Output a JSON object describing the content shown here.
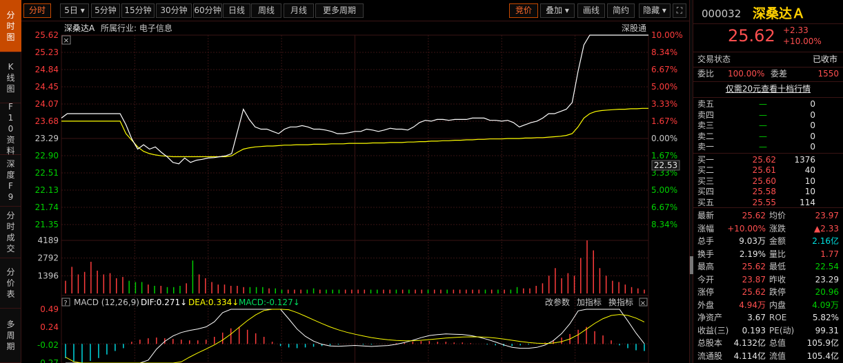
{
  "sidebar": {
    "tabs": [
      {
        "id": "intraday",
        "label": "分时图"
      },
      {
        "id": "kline",
        "label": "K线图"
      },
      {
        "id": "f10",
        "label": "F10资料"
      },
      {
        "id": "depth",
        "label": "深度F9"
      },
      {
        "id": "trades",
        "label": "分时成交"
      },
      {
        "id": "price",
        "label": "分价表"
      },
      {
        "id": "multi",
        "label": "多周期"
      }
    ]
  },
  "toolbar": {
    "left": [
      "分时",
      "5日",
      "5分钟",
      "15分钟",
      "30分钟",
      "60分钟",
      "日线",
      "周线",
      "月线",
      "更多周期"
    ],
    "right": [
      "竞价",
      "叠加",
      "画线",
      "简约",
      "隐藏"
    ]
  },
  "chart": {
    "title": "深桑达A",
    "industry": "所属行业: 电子信息",
    "tag": "深股通",
    "price_ticks": [
      "25.62",
      "25.23",
      "24.84",
      "24.45",
      "24.07",
      "23.68",
      "23.29",
      "22.90",
      "22.51",
      "22.13",
      "21.74",
      "21.35"
    ],
    "pct_ticks": [
      "10.00%",
      "8.34%",
      "6.67%",
      "5.00%",
      "3.33%",
      "1.67%",
      "0.00%",
      "1.67%",
      "3.33%",
      "5.00%",
      "6.67%",
      "8.34%"
    ],
    "cursor_price": "22.53",
    "volume_ticks": [
      "4189",
      "2792",
      "1396"
    ],
    "macd": {
      "name": "MACD",
      "params": "(12,26,9)",
      "dif": "DIF:0.271↓",
      "dea": "DEA:0.334↓",
      "macd": "MACD:-0.127↓",
      "buttons": [
        "改参数",
        "加指标",
        "换指标"
      ],
      "ticks": [
        "0.49",
        "0.24",
        "-0.02",
        "-0.27"
      ]
    },
    "colors": {
      "up": "#ff3c3c",
      "down": "#00d000",
      "price_line": "#ffffff",
      "avg_line": "#ffff00",
      "grid": "#3a1414",
      "cyan": "#00d8e0"
    }
  },
  "chart_data": {
    "type": "line",
    "series": [
      {
        "values": [
          23.75,
          23.85,
          23.85,
          23.85,
          23.85,
          23.85,
          23.85,
          23.85,
          23.85,
          23.85,
          23.85,
          23.6,
          23.28,
          23.05,
          23.15,
          23.05,
          23.1,
          22.98,
          22.88,
          22.75,
          22.72,
          22.85,
          22.75,
          22.8,
          22.82,
          22.85,
          22.86,
          22.88,
          22.9,
          22.95,
          23.45,
          23.95,
          23.72,
          23.55,
          23.5,
          23.5,
          23.45,
          23.4,
          23.5,
          23.55,
          23.55,
          23.58,
          23.55,
          23.5,
          23.5,
          23.48,
          23.45,
          23.4,
          23.4,
          23.42,
          23.45,
          23.45,
          23.5,
          23.48,
          23.45,
          23.48,
          23.52,
          23.5,
          23.5,
          23.48,
          23.55,
          23.65,
          23.7,
          23.68,
          23.72,
          23.72,
          23.7,
          23.72,
          23.72,
          23.72,
          23.75,
          23.75,
          23.75,
          23.7,
          23.7,
          23.68,
          23.7,
          23.65,
          23.55,
          23.6,
          23.65,
          23.68,
          23.75,
          23.85,
          23.85,
          23.9,
          23.95,
          24.1,
          24.8,
          25.4,
          25.62,
          25.62,
          25.62,
          25.62,
          25.62,
          25.62,
          25.62,
          25.62,
          25.62,
          25.62,
          25.62
        ]
      },
      {
        "values": [
          23.68,
          23.68,
          23.68,
          23.68,
          23.68,
          23.68,
          23.68,
          23.68,
          23.68,
          23.68,
          23.68,
          23.4,
          23.25,
          23.1,
          23.0,
          22.95,
          22.92,
          22.9,
          22.89,
          22.88,
          22.88,
          22.88,
          22.88,
          22.88,
          22.88,
          22.88,
          22.88,
          22.88,
          22.88,
          22.9,
          22.98,
          23.05,
          23.08,
          23.1,
          23.11,
          23.12,
          23.12,
          23.13,
          23.14,
          23.14,
          23.15,
          23.15,
          23.15,
          23.16,
          23.16,
          23.16,
          23.17,
          23.17,
          23.17,
          23.18,
          23.18,
          23.18,
          23.18,
          23.19,
          23.19,
          23.19,
          23.2,
          23.2,
          23.2,
          23.21,
          23.21,
          23.22,
          23.22,
          23.23,
          23.23,
          23.24,
          23.24,
          23.25,
          23.25,
          23.26,
          23.26,
          23.27,
          23.27,
          23.28,
          23.28,
          23.28,
          23.29,
          23.29,
          23.29,
          23.3,
          23.3,
          23.31,
          23.31,
          23.32,
          23.33,
          23.34,
          23.36,
          23.4,
          23.55,
          23.75,
          23.85,
          23.9,
          23.92,
          23.93,
          23.94,
          23.95,
          23.95,
          23.96,
          23.96,
          23.97,
          23.97
        ]
      }
    ],
    "ylim": [
      21.35,
      25.62
    ],
    "volume": [
      1000,
      2100,
      1500,
      1700,
      2500,
      1800,
      1500,
      1600,
      1200,
      1300,
      1000,
      900,
      900,
      700,
      600,
      600,
      500,
      500,
      600,
      800,
      2600,
      1500,
      1200,
      900,
      700,
      700,
      600,
      600,
      500,
      500,
      500,
      500,
      400,
      400,
      300,
      300,
      300,
      300,
      300,
      400,
      300,
      300,
      300,
      300,
      300,
      300,
      300,
      300,
      300,
      300,
      300,
      300,
      300,
      300,
      300,
      300,
      300,
      300,
      300,
      300,
      300,
      300,
      300,
      300,
      300,
      300,
      300,
      300,
      300,
      300,
      300,
      500,
      400,
      400,
      600,
      800,
      1400,
      2000,
      1200,
      1600,
      1400,
      2800,
      4189,
      3400,
      2000,
      1400,
      1000,
      900,
      700,
      500,
      400,
      300
    ],
    "volume_ylim": [
      0,
      4189
    ],
    "macd_hist": [
      -0.2,
      -0.25,
      -0.27,
      -0.24,
      -0.2,
      -0.15,
      -0.1,
      -0.06,
      0.03,
      0.06,
      0.08,
      0.09,
      0.08,
      0.07,
      0.06,
      0.05,
      0.05,
      0.06,
      0.1,
      0.16,
      0.22,
      0.24,
      0.2,
      0.15,
      0.1,
      0.03,
      -0.03,
      -0.05,
      -0.06,
      -0.05,
      -0.04,
      -0.03,
      -0.02,
      -0.01,
      0.0,
      0.0,
      -0.01,
      -0.01,
      0.0,
      0.0,
      0.01,
      0.02,
      0.03,
      0.04,
      0.04,
      0.03,
      0.03,
      0.02,
      0.02,
      0.01,
      0.0,
      -0.01,
      -0.02,
      -0.03,
      -0.03,
      -0.02,
      -0.01,
      0.0,
      0.02,
      0.05,
      0.09,
      0.14,
      0.2,
      0.24,
      0.18,
      0.12,
      0.05,
      -0.02,
      -0.06,
      -0.09,
      -0.1
    ],
    "macd_ylim": [
      -0.27,
      0.49
    ]
  },
  "quote": {
    "code": "000032",
    "name": "深桑达Ａ",
    "price": "25.62",
    "change": "+2.33",
    "change_pct": "+10.00%",
    "status_label": "交易状态",
    "status": "已收市",
    "webi_label": "委比",
    "webi": "100.00%",
    "weicha_label": "委差",
    "weicha": "1550",
    "link": "仅需20元查看十档行情",
    "sell": [
      {
        "label": "卖五",
        "price": "—",
        "vol": "0"
      },
      {
        "label": "卖四",
        "price": "—",
        "vol": "0"
      },
      {
        "label": "卖三",
        "price": "—",
        "vol": "0"
      },
      {
        "label": "卖二",
        "price": "—",
        "vol": "0"
      },
      {
        "label": "卖一",
        "price": "—",
        "vol": "0"
      }
    ],
    "buy": [
      {
        "label": "买一",
        "price": "25.62",
        "vol": "1376"
      },
      {
        "label": "买二",
        "price": "25.61",
        "vol": "40"
      },
      {
        "label": "买三",
        "price": "25.60",
        "vol": "10"
      },
      {
        "label": "买四",
        "price": "25.58",
        "vol": "10"
      },
      {
        "label": "买五",
        "price": "25.55",
        "vol": "114"
      }
    ],
    "stats": [
      [
        "最新",
        "25.62",
        "red",
        "均价",
        "23.97",
        "red"
      ],
      [
        "涨幅",
        "+10.00%",
        "red",
        "涨跌",
        "▲2.33",
        "red"
      ],
      [
        "总手",
        "9.03万",
        "white",
        "金额",
        "2.16亿",
        "cyan"
      ],
      [
        "换手",
        "2.19%",
        "white",
        "量比",
        "1.77",
        "red"
      ],
      [
        "最高",
        "25.62",
        "red",
        "最低",
        "22.54",
        "green"
      ],
      [
        "今开",
        "23.87",
        "red",
        "昨收",
        "23.29",
        "white"
      ],
      [
        "涨停",
        "25.62",
        "red",
        "跌停",
        "20.96",
        "green"
      ],
      [
        "外盘",
        "4.94万",
        "red",
        "内盘",
        "4.09万",
        "green"
      ],
      [
        "净资产",
        "3.67",
        "white",
        "ROE",
        "5.82%",
        "white"
      ],
      [
        "收益(三)",
        "0.193",
        "white",
        "PE(动)",
        "99.31",
        "white"
      ],
      [
        "总股本",
        "4.132亿",
        "white",
        "总值",
        "105.9亿",
        "white"
      ],
      [
        "流通股",
        "4.114亿",
        "white",
        "流值",
        "105.4亿",
        "white"
      ]
    ]
  }
}
